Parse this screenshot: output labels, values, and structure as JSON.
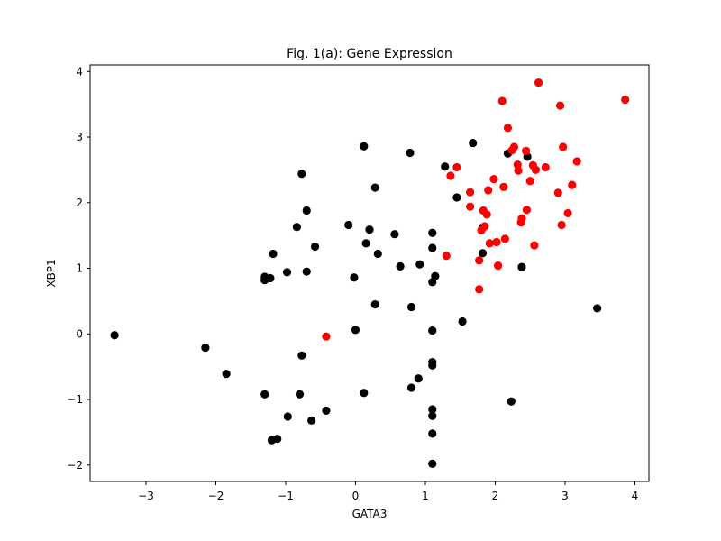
{
  "chart_data": {
    "type": "scatter",
    "title": "Fig. 1(a): Gene Expression",
    "xlabel": "GATA3",
    "ylabel": "XBP1",
    "xlim": [
      -3.8,
      4.2
    ],
    "ylim": [
      -2.25,
      4.1
    ],
    "xticks": [
      -3,
      -2,
      -1,
      0,
      1,
      2,
      3,
      4
    ],
    "yticks": [
      -2,
      -1,
      0,
      1,
      2,
      3,
      4
    ],
    "grid": false,
    "series": [
      {
        "color": "#000000",
        "points": [
          [
            -3.45,
            -0.02
          ],
          [
            -2.15,
            -0.21
          ],
          [
            -1.85,
            -0.61
          ],
          [
            -1.3,
            0.82
          ],
          [
            -1.3,
            0.87
          ],
          [
            -1.3,
            -0.92
          ],
          [
            -1.22,
            0.85
          ],
          [
            -1.2,
            -1.62
          ],
          [
            -1.18,
            1.22
          ],
          [
            -1.12,
            -1.6
          ],
          [
            -0.98,
            0.94
          ],
          [
            -0.97,
            -1.26
          ],
          [
            -0.84,
            1.63
          ],
          [
            -0.77,
            2.44
          ],
          [
            -0.77,
            -0.33
          ],
          [
            -0.8,
            -0.92
          ],
          [
            -0.7,
            1.88
          ],
          [
            -0.7,
            0.95
          ],
          [
            -0.63,
            -1.32
          ],
          [
            -0.58,
            1.33
          ],
          [
            -0.42,
            -1.17
          ],
          [
            -0.1,
            1.66
          ],
          [
            -0.02,
            0.86
          ],
          [
            0.0,
            0.06
          ],
          [
            0.12,
            2.86
          ],
          [
            0.12,
            -0.9
          ],
          [
            0.15,
            1.38
          ],
          [
            0.2,
            1.59
          ],
          [
            0.28,
            2.23
          ],
          [
            0.28,
            0.45
          ],
          [
            0.32,
            1.22
          ],
          [
            0.56,
            1.52
          ],
          [
            0.64,
            1.03
          ],
          [
            0.78,
            2.76
          ],
          [
            0.8,
            0.41
          ],
          [
            0.8,
            -0.82
          ],
          [
            0.9,
            -0.68
          ],
          [
            0.92,
            1.06
          ],
          [
            1.1,
            1.54
          ],
          [
            1.1,
            1.31
          ],
          [
            1.1,
            0.79
          ],
          [
            1.1,
            0.05
          ],
          [
            1.1,
            -0.43
          ],
          [
            1.1,
            -0.48
          ],
          [
            1.1,
            -1.15
          ],
          [
            1.1,
            -1.25
          ],
          [
            1.1,
            -1.52
          ],
          [
            1.1,
            -1.98
          ],
          [
            1.14,
            0.88
          ],
          [
            1.28,
            2.55
          ],
          [
            1.45,
            2.08
          ],
          [
            1.53,
            0.19
          ],
          [
            1.68,
            2.91
          ],
          [
            1.82,
            1.62
          ],
          [
            1.82,
            1.23
          ],
          [
            2.18,
            2.75
          ],
          [
            2.23,
            -1.03
          ],
          [
            2.38,
            1.02
          ],
          [
            2.46,
            2.7
          ],
          [
            3.46,
            0.39
          ]
        ]
      },
      {
        "color": "#ff0000",
        "points": [
          [
            -0.42,
            -0.04
          ],
          [
            1.3,
            1.19
          ],
          [
            1.36,
            2.41
          ],
          [
            1.45,
            2.54
          ],
          [
            1.64,
            2.16
          ],
          [
            1.64,
            1.94
          ],
          [
            1.77,
            0.68
          ],
          [
            1.77,
            1.12
          ],
          [
            1.8,
            1.58
          ],
          [
            1.83,
            1.88
          ],
          [
            1.85,
            1.64
          ],
          [
            1.88,
            1.82
          ],
          [
            1.9,
            2.19
          ],
          [
            1.92,
            1.38
          ],
          [
            1.98,
            2.36
          ],
          [
            2.02,
            1.4
          ],
          [
            2.04,
            1.04
          ],
          [
            2.1,
            3.55
          ],
          [
            2.12,
            2.24
          ],
          [
            2.14,
            1.45
          ],
          [
            2.18,
            3.14
          ],
          [
            2.24,
            2.8
          ],
          [
            2.27,
            2.85
          ],
          [
            2.32,
            2.58
          ],
          [
            2.33,
            2.49
          ],
          [
            2.37,
            1.7
          ],
          [
            2.38,
            1.76
          ],
          [
            2.44,
            2.79
          ],
          [
            2.45,
            1.89
          ],
          [
            2.5,
            2.33
          ],
          [
            2.54,
            2.57
          ],
          [
            2.56,
            1.35
          ],
          [
            2.58,
            2.5
          ],
          [
            2.62,
            3.83
          ],
          [
            2.72,
            2.54
          ],
          [
            2.9,
            2.15
          ],
          [
            2.93,
            3.48
          ],
          [
            2.95,
            1.66
          ],
          [
            2.97,
            2.85
          ],
          [
            3.04,
            1.84
          ],
          [
            3.1,
            2.27
          ],
          [
            3.17,
            2.63
          ],
          [
            3.86,
            3.57
          ]
        ]
      }
    ]
  }
}
